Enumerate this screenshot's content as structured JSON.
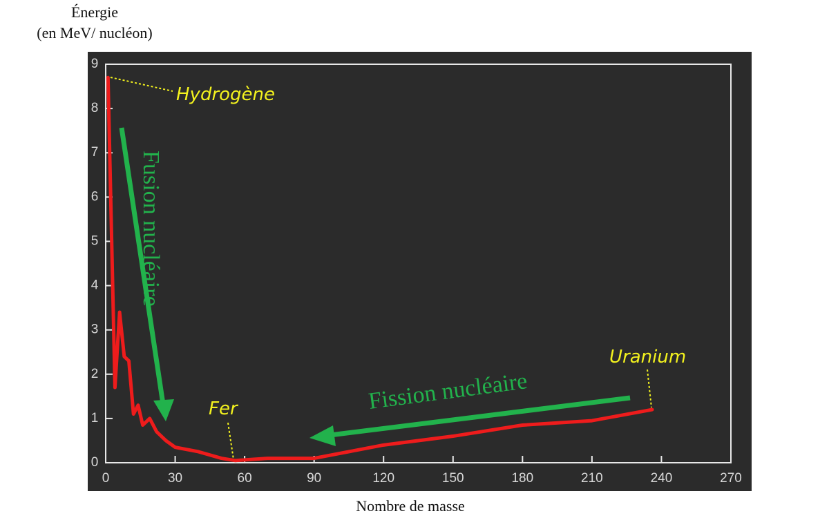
{
  "chart_data": {
    "type": "line",
    "y_title_line1": "Énergie",
    "y_title_line2": "(en MeV/ nucléon)",
    "x_title": "Nombre de masse",
    "x": [
      1,
      4,
      6,
      8,
      10,
      12,
      14,
      16,
      19,
      22,
      26,
      30,
      40,
      50,
      56,
      70,
      90,
      120,
      150,
      180,
      210,
      236
    ],
    "series": [
      {
        "color": "#ee1c1c",
        "values": [
          8.7,
          1.7,
          3.4,
          2.4,
          2.3,
          1.1,
          1.3,
          0.85,
          1.0,
          0.7,
          0.5,
          0.35,
          0.25,
          0.1,
          0.05,
          0.1,
          0.1,
          0.4,
          0.6,
          0.85,
          0.95,
          1.2
        ]
      }
    ],
    "xlim": [
      0,
      270
    ],
    "ylim": [
      0,
      9
    ],
    "xticks": [
      0,
      30,
      60,
      90,
      120,
      150,
      180,
      210,
      240,
      270
    ],
    "yticks": [
      0,
      1,
      2,
      3,
      4,
      5,
      6,
      7,
      8,
      9
    ],
    "annotations": {
      "hydrogen": "Hydrogène",
      "iron": "Fer",
      "uranium": "Uranium",
      "fusion": "Fusion nucléaire",
      "fission": "Fission nucléaire"
    }
  }
}
